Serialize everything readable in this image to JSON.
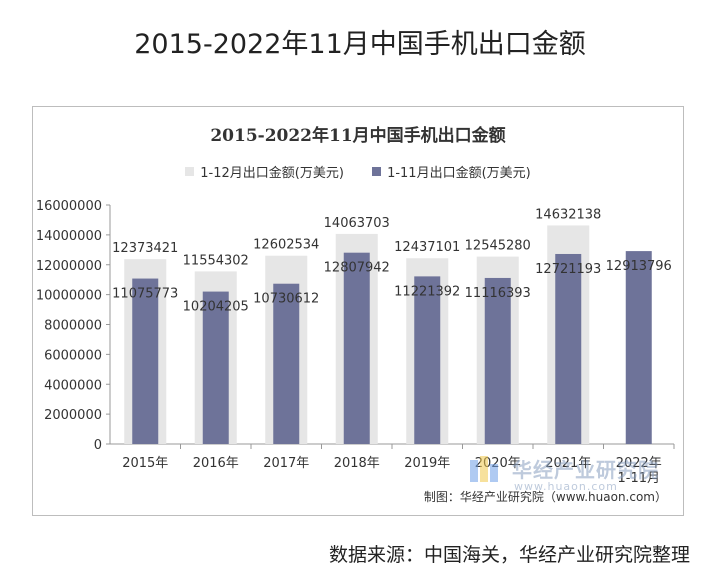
{
  "page": {
    "title": "2015-2022年11月中国手机出口金额",
    "source": "数据来源：中国海关，华经产业研究院整理"
  },
  "watermark": {
    "text": "华经产业研究院",
    "sub": "www.huaon.com"
  },
  "chart_data": {
    "type": "bar",
    "title": "2015-2022年11月中国手机出口金额",
    "credit": "制图：华经产业研究院（www.huaon.com）",
    "categories": [
      "2015年",
      "2016年",
      "2017年",
      "2018年",
      "2019年",
      "2020年",
      "2021年",
      "2022年\n1-11月"
    ],
    "series": [
      {
        "name": "1-12月出口金额(万美元)",
        "color": "#e6e6e6",
        "values": [
          12373421,
          11554302,
          12602534,
          14063703,
          12437101,
          12545280,
          14632138,
          null
        ]
      },
      {
        "name": "1-11月出口金额(万美元)",
        "color": "#6e7399",
        "values": [
          11075773,
          10204205,
          10730612,
          12807942,
          11221392,
          11116393,
          12721193,
          12913796
        ]
      }
    ],
    "ylim": [
      0,
      16000000
    ],
    "yticks": [
      0,
      2000000,
      4000000,
      6000000,
      8000000,
      10000000,
      12000000,
      14000000,
      16000000
    ],
    "xlabel": "",
    "ylabel": "",
    "grid": false,
    "legend": "top"
  }
}
